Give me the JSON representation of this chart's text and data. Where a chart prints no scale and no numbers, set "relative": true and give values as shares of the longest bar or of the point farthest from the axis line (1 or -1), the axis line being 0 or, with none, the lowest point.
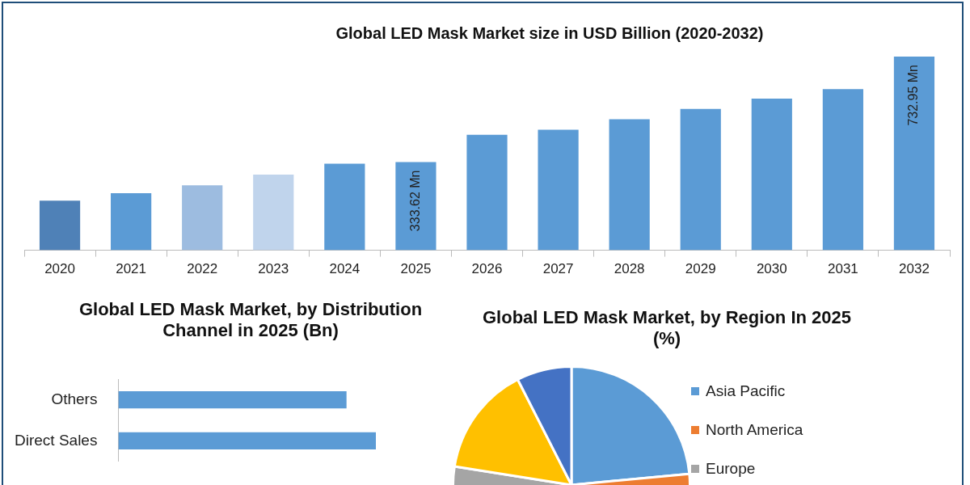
{
  "chart_data": [
    {
      "type": "bar",
      "title": "Global LED Mask Market size in USD Billion (2020-2032)",
      "tick_labels": "x",
      "categories": [
        "2020",
        "2021",
        "2022",
        "2023",
        "2024",
        "2025",
        "2026",
        "2027",
        "2028",
        "2029",
        "2030",
        "2031",
        "2032"
      ],
      "values": [
        188,
        216,
        246,
        286,
        328,
        333.62,
        437,
        456,
        496,
        535,
        574,
        610,
        732.95
      ],
      "colors": [
        "#4f81b7",
        "#5b9bd5",
        "#9dbce0",
        "#c0d4ec",
        "#5b9bd5",
        "#5b9bd5",
        "#5b9bd5",
        "#5b9bd5",
        "#5b9bd5",
        "#5b9bd5",
        "#5b9bd5",
        "#5b9bd5",
        "#5b9bd5"
      ],
      "value_labels": [
        null,
        null,
        null,
        null,
        null,
        "333.62 Mn",
        null,
        null,
        null,
        null,
        null,
        null,
        "732.95 Mn"
      ]
    },
    {
      "type": "bar",
      "title": "Global LED Mask Market, by Distribution Channel in 2025 (Bn)",
      "relative": true,
      "orientation": "horizontal",
      "categories": [
        "Others",
        "Direct Sales"
      ],
      "values": [
        0.886,
        1
      ],
      "color": "#5b9bd5"
    },
    {
      "type": "pie",
      "title": "Global LED Mask Market, by Region In 2025 (%)",
      "legend": "right",
      "categories": [
        "Asia Pacific",
        "North America",
        "Europe",
        null,
        null
      ],
      "values": [
        23.5,
        27,
        27,
        15,
        7.5
      ],
      "colors": [
        "#5b9bd5",
        "#ed7d31",
        "#a5a5a5",
        "#ffc000",
        "#4472c4"
      ]
    }
  ]
}
